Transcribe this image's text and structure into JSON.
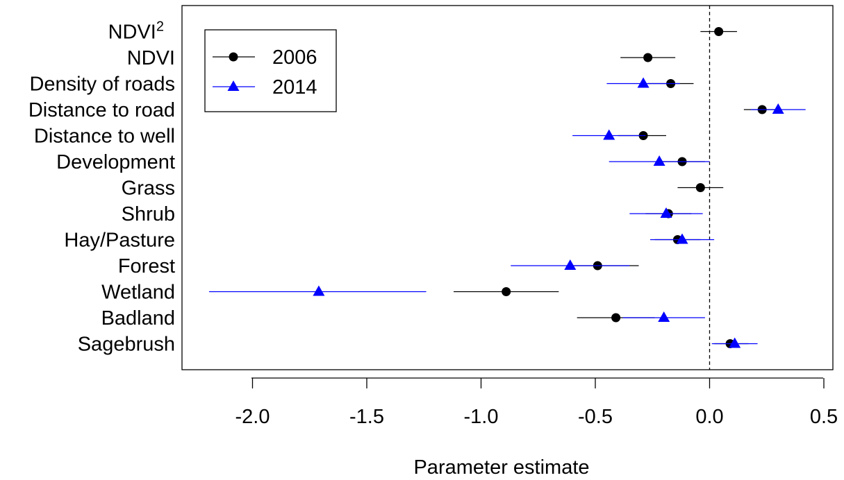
{
  "chart_data": {
    "type": "scatter",
    "subtype": "coefficient-plot-with-intervals",
    "title": "",
    "xlabel": "Parameter estimate",
    "ylabel": "",
    "xlim": [
      -2.3,
      0.52
    ],
    "xticks": [
      -2.0,
      -1.5,
      -1.0,
      -0.5,
      0.0,
      0.5
    ],
    "xtick_labels": [
      "-2.0",
      "-1.5",
      "-1.0",
      "-0.5",
      "0.0",
      "0.5"
    ],
    "reference_line": {
      "x": 0.0,
      "style": "dashed"
    },
    "grid": false,
    "legend_position": "top-left",
    "categories": [
      "NDVI",
      "NDVI",
      "Density of roads",
      "Distance to road",
      "Distance to well",
      "Development",
      "Grass",
      "Shrub",
      "Hay/Pasture",
      "Forest",
      "Wetland",
      "Badland",
      "Sagebrush"
    ],
    "category_superscripts": [
      "2",
      "",
      "",
      "",
      "",
      "",
      "",
      "",
      "",
      "",
      "",
      "",
      ""
    ],
    "series": [
      {
        "name": "2006",
        "marker": "circle",
        "color": "#000000",
        "values": [
          {
            "est": 0.04,
            "lo": -0.04,
            "hi": 0.12
          },
          {
            "est": -0.27,
            "lo": -0.39,
            "hi": -0.15
          },
          {
            "est": -0.17,
            "lo": -0.27,
            "hi": -0.07
          },
          {
            "est": 0.23,
            "lo": 0.15,
            "hi": 0.31
          },
          {
            "est": -0.29,
            "lo": -0.4,
            "hi": -0.19
          },
          {
            "est": -0.12,
            "lo": -0.22,
            "hi": -0.02
          },
          {
            "est": -0.04,
            "lo": -0.14,
            "hi": 0.06
          },
          {
            "est": -0.18,
            "lo": -0.28,
            "hi": -0.08
          },
          {
            "est": -0.14,
            "lo": -0.24,
            "hi": -0.04
          },
          {
            "est": -0.49,
            "lo": -0.61,
            "hi": -0.31
          },
          {
            "est": -0.89,
            "lo": -1.12,
            "hi": -0.66
          },
          {
            "est": -0.41,
            "lo": -0.58,
            "hi": -0.24
          },
          {
            "est": 0.09,
            "lo": 0.02,
            "hi": 0.17
          }
        ]
      },
      {
        "name": "2014",
        "marker": "triangle",
        "color": "#0000ff",
        "values": [
          null,
          null,
          {
            "est": -0.29,
            "lo": -0.45,
            "hi": -0.13
          },
          {
            "est": 0.3,
            "lo": 0.18,
            "hi": 0.42
          },
          {
            "est": -0.44,
            "lo": -0.6,
            "hi": -0.28
          },
          {
            "est": -0.22,
            "lo": -0.44,
            "hi": 0.0
          },
          null,
          {
            "est": -0.19,
            "lo": -0.35,
            "hi": -0.03
          },
          {
            "est": -0.12,
            "lo": -0.26,
            "hi": 0.02
          },
          {
            "est": -0.61,
            "lo": -0.87,
            "hi": -0.35
          },
          {
            "est": -1.71,
            "lo": -2.19,
            "hi": -1.24
          },
          {
            "est": -0.2,
            "lo": -0.38,
            "hi": -0.02
          },
          {
            "est": 0.11,
            "lo": 0.01,
            "hi": 0.21
          }
        ]
      }
    ]
  }
}
